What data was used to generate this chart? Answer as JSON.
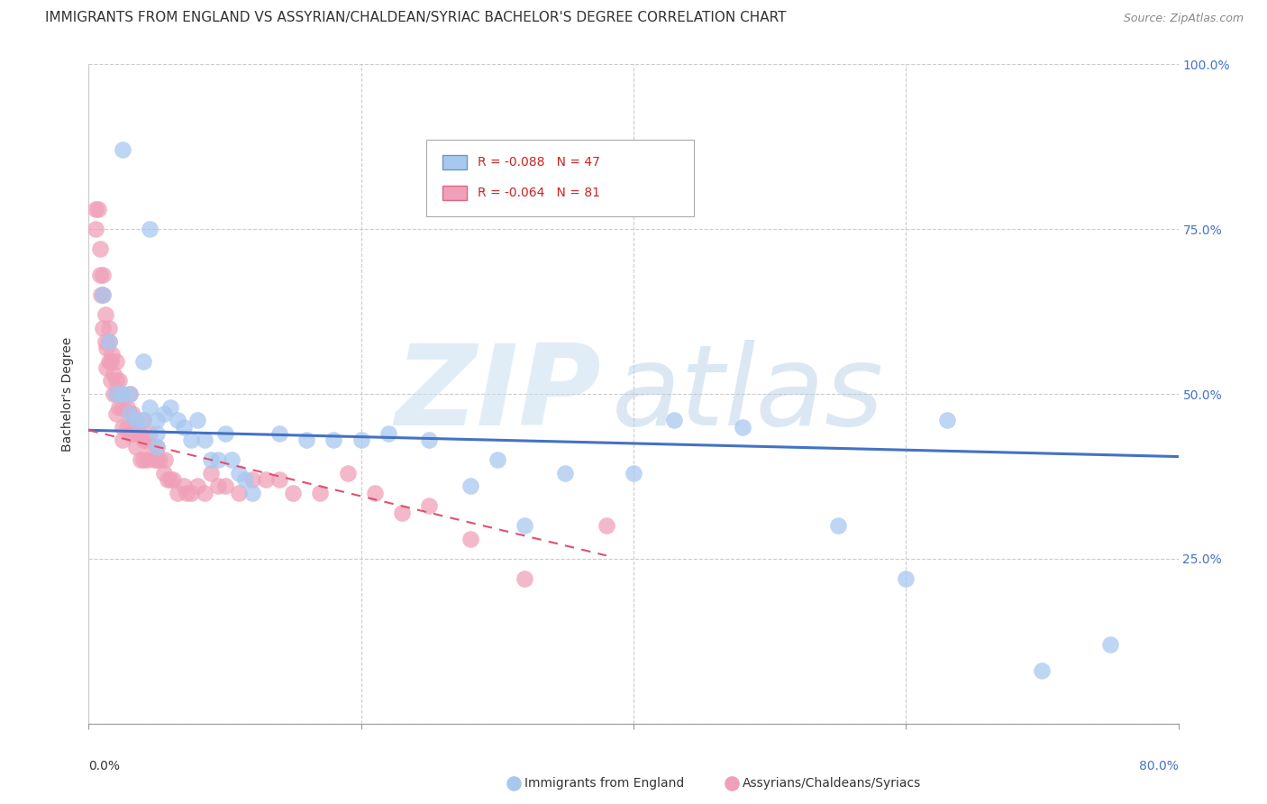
{
  "title": "IMMIGRANTS FROM ENGLAND VS ASSYRIAN/CHALDEAN/SYRIAC BACHELOR'S DEGREE CORRELATION CHART",
  "source": "Source: ZipAtlas.com",
  "ylabel": "Bachelor's Degree",
  "xlim": [
    0.0,
    0.8
  ],
  "ylim": [
    0.0,
    1.0
  ],
  "yticks": [
    0.0,
    0.25,
    0.5,
    0.75,
    1.0
  ],
  "ytick_labels": [
    "",
    "25.0%",
    "50.0%",
    "75.0%",
    "100.0%"
  ],
  "xticks": [
    0.0,
    0.2,
    0.4,
    0.6,
    0.8
  ],
  "series1_label": "Immigrants from England",
  "series1_color": "#a8c8f0",
  "series1_line_color": "#4472c4",
  "series1_R": -0.088,
  "series1_N": 47,
  "series2_label": "Assyrians/Chaldeans/Syriacs",
  "series2_color": "#f0a0b8",
  "series2_line_color": "#e05070",
  "series2_R": -0.064,
  "series2_N": 81,
  "watermark_zip": "ZIP",
  "watermark_atlas": "atlas",
  "background_color": "#ffffff",
  "grid_color": "#cccccc",
  "title_fontsize": 11,
  "blue_scatter_x": [
    0.025,
    0.045,
    0.01,
    0.015,
    0.02,
    0.025,
    0.03,
    0.03,
    0.035,
    0.04,
    0.04,
    0.045,
    0.05,
    0.05,
    0.05,
    0.055,
    0.06,
    0.065,
    0.07,
    0.075,
    0.08,
    0.085,
    0.09,
    0.095,
    0.1,
    0.105,
    0.11,
    0.115,
    0.12,
    0.14,
    0.16,
    0.18,
    0.2,
    0.22,
    0.25,
    0.28,
    0.3,
    0.32,
    0.35,
    0.4,
    0.43,
    0.48,
    0.55,
    0.6,
    0.63,
    0.7,
    0.75
  ],
  "blue_scatter_y": [
    0.87,
    0.75,
    0.65,
    0.58,
    0.5,
    0.5,
    0.5,
    0.47,
    0.46,
    0.55,
    0.46,
    0.48,
    0.46,
    0.44,
    0.42,
    0.47,
    0.48,
    0.46,
    0.45,
    0.43,
    0.46,
    0.43,
    0.4,
    0.4,
    0.44,
    0.4,
    0.38,
    0.37,
    0.35,
    0.44,
    0.43,
    0.43,
    0.43,
    0.44,
    0.43,
    0.36,
    0.4,
    0.3,
    0.38,
    0.38,
    0.46,
    0.45,
    0.3,
    0.22,
    0.46,
    0.08,
    0.12
  ],
  "pink_scatter_x": [
    0.005,
    0.005,
    0.007,
    0.008,
    0.008,
    0.009,
    0.01,
    0.01,
    0.01,
    0.012,
    0.012,
    0.013,
    0.013,
    0.015,
    0.015,
    0.015,
    0.016,
    0.016,
    0.017,
    0.018,
    0.018,
    0.02,
    0.02,
    0.02,
    0.02,
    0.022,
    0.022,
    0.024,
    0.025,
    0.025,
    0.025,
    0.028,
    0.028,
    0.03,
    0.03,
    0.03,
    0.032,
    0.032,
    0.034,
    0.035,
    0.035,
    0.037,
    0.038,
    0.04,
    0.04,
    0.04,
    0.042,
    0.043,
    0.045,
    0.046,
    0.048,
    0.05,
    0.05,
    0.052,
    0.055,
    0.056,
    0.058,
    0.06,
    0.062,
    0.065,
    0.07,
    0.072,
    0.075,
    0.08,
    0.085,
    0.09,
    0.095,
    0.1,
    0.11,
    0.12,
    0.13,
    0.14,
    0.15,
    0.17,
    0.19,
    0.21,
    0.23,
    0.25,
    0.28,
    0.32,
    0.38
  ],
  "pink_scatter_y": [
    0.78,
    0.75,
    0.78,
    0.72,
    0.68,
    0.65,
    0.68,
    0.65,
    0.6,
    0.62,
    0.58,
    0.57,
    0.54,
    0.6,
    0.58,
    0.55,
    0.55,
    0.52,
    0.56,
    0.53,
    0.5,
    0.55,
    0.52,
    0.5,
    0.47,
    0.52,
    0.48,
    0.5,
    0.48,
    0.45,
    0.43,
    0.48,
    0.45,
    0.5,
    0.47,
    0.44,
    0.47,
    0.44,
    0.46,
    0.45,
    0.42,
    0.44,
    0.4,
    0.46,
    0.43,
    0.4,
    0.43,
    0.4,
    0.44,
    0.42,
    0.4,
    0.42,
    0.4,
    0.4,
    0.38,
    0.4,
    0.37,
    0.37,
    0.37,
    0.35,
    0.36,
    0.35,
    0.35,
    0.36,
    0.35,
    0.38,
    0.36,
    0.36,
    0.35,
    0.37,
    0.37,
    0.37,
    0.35,
    0.35,
    0.38,
    0.35,
    0.32,
    0.33,
    0.28,
    0.22,
    0.3
  ],
  "blue_line_x0": 0.0,
  "blue_line_x1": 0.8,
  "blue_line_y0": 0.445,
  "blue_line_y1": 0.405,
  "pink_line_x0": 0.0,
  "pink_line_x1": 0.38,
  "pink_line_y0": 0.445,
  "pink_line_y1": 0.255
}
